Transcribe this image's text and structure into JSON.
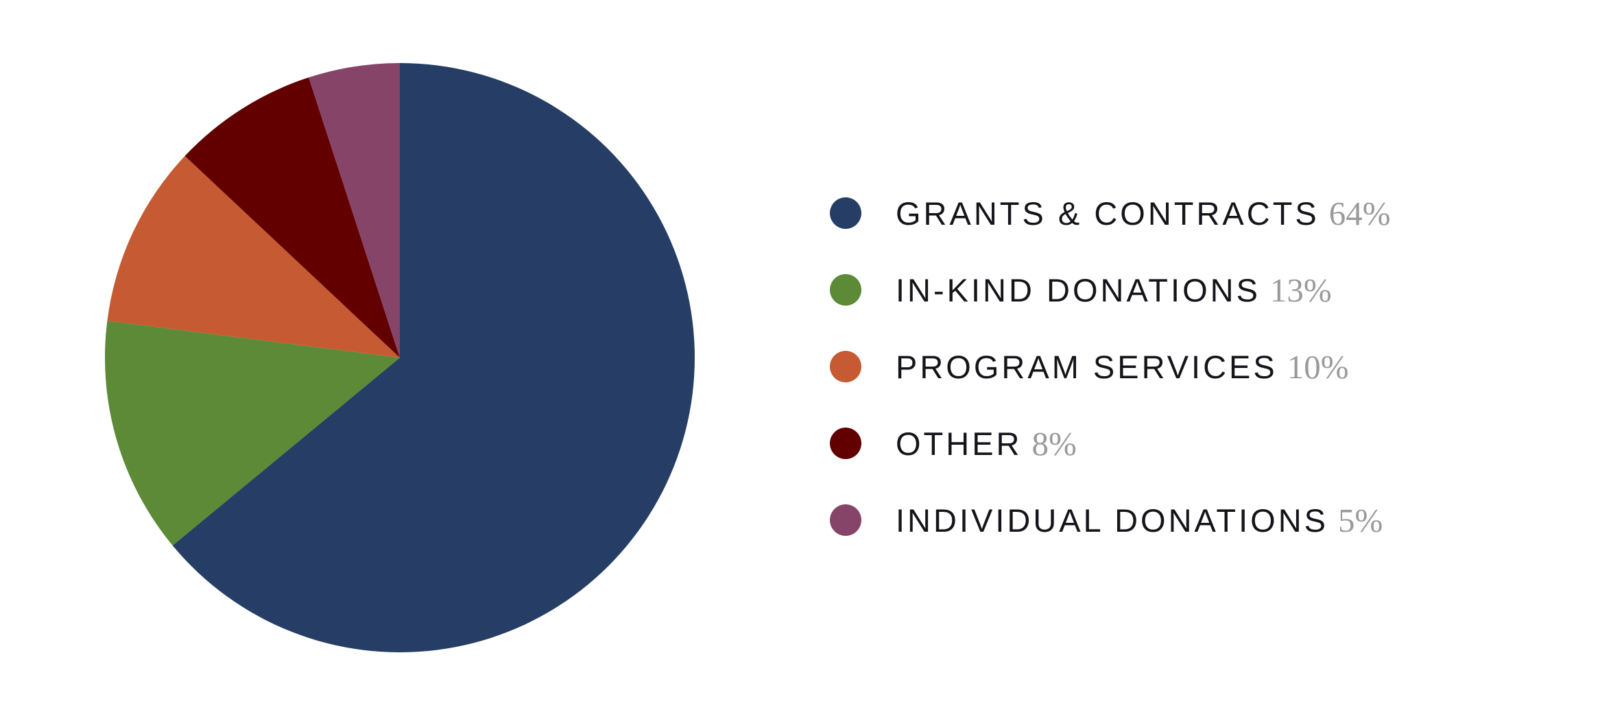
{
  "chart_data": {
    "type": "pie",
    "title": "",
    "slices": [
      {
        "label": "GRANTS & CONTRACTS",
        "value": 64,
        "display": "64%",
        "color": "#263e66"
      },
      {
        "label": "IN-KIND DONATIONS",
        "value": 13,
        "display": "13%",
        "color": "#5c8a36"
      },
      {
        "label": "PROGRAM SERVICES",
        "value": 10,
        "display": "10%",
        "color": "#c65a32"
      },
      {
        "label": "OTHER",
        "value": 8,
        "display": "8%",
        "color": "#620000"
      },
      {
        "label": "INDIVIDUAL DONATIONS",
        "value": 5,
        "display": "5%",
        "color": "#864468"
      }
    ],
    "legend_position": "right",
    "start_angle": "12 o'clock",
    "direction": "clockwise"
  }
}
